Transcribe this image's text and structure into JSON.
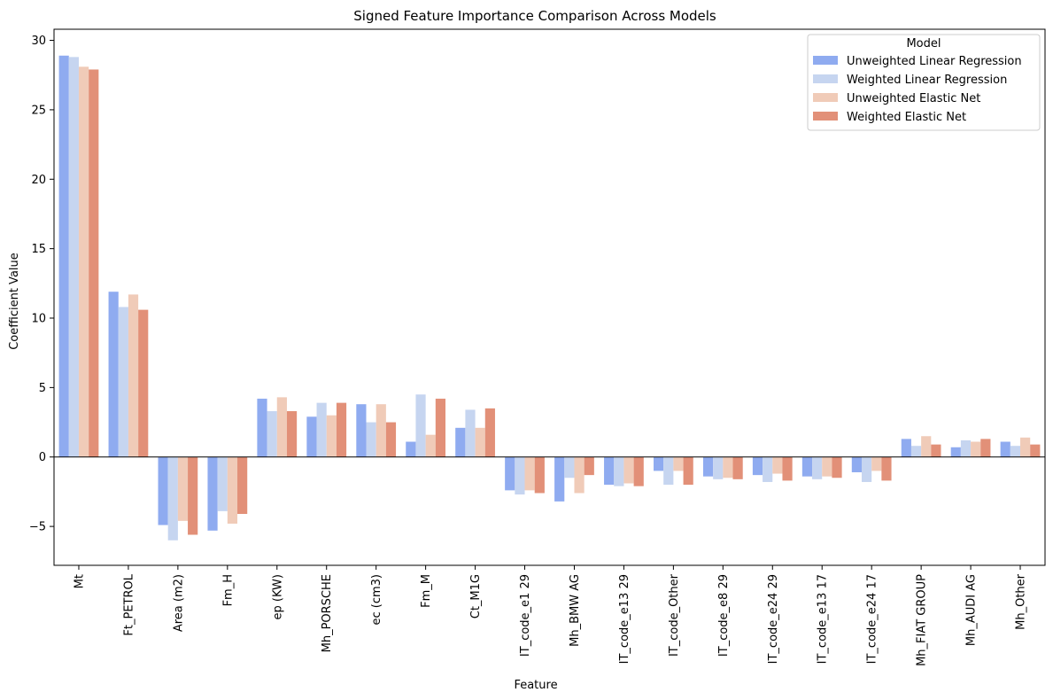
{
  "chart_data": {
    "type": "bar",
    "title": "Signed Feature Importance Comparison Across Models",
    "xlabel": "Feature",
    "ylabel": "Coefficient Value",
    "ylim": [
      -7.8,
      30.8
    ],
    "yticks": [
      -5,
      0,
      5,
      10,
      15,
      20,
      25,
      30
    ],
    "grid": false,
    "legend": {
      "title": "Model",
      "placement": "top-right"
    },
    "categories": [
      "Mt",
      "Ft_PETROL",
      "Area (m2)",
      "Fm_H",
      "ep (KW)",
      "Mh_PORSCHE",
      "ec (cm3)",
      "Fm_M",
      "Ct_M1G",
      "IT_code_e1 29",
      "Mh_BMW AG",
      "IT_code_e13 29",
      "IT_code_Other",
      "IT_code_e8 29",
      "IT_code_e24 29",
      "IT_code_e13 17",
      "IT_code_e24 17",
      "Mh_FIAT GROUP",
      "Mh_AUDI AG",
      "Mh_Other"
    ],
    "series": [
      {
        "name": "Unweighted Linear Regression",
        "color": "#8fabf0",
        "values": [
          28.9,
          11.9,
          -4.9,
          -5.3,
          4.2,
          2.9,
          3.8,
          1.1,
          2.1,
          -2.4,
          -3.2,
          -2.0,
          -1.0,
          -1.4,
          -1.3,
          -1.4,
          -1.1,
          1.3,
          0.7,
          1.1
        ]
      },
      {
        "name": "Weighted Linear Regression",
        "color": "#c6d5f0",
        "values": [
          28.8,
          10.8,
          -6.0,
          -3.9,
          3.3,
          3.9,
          2.5,
          4.5,
          3.4,
          -2.7,
          -1.5,
          -2.1,
          -2.0,
          -1.6,
          -1.8,
          -1.6,
          -1.8,
          0.8,
          1.2,
          0.8
        ]
      },
      {
        "name": "Unweighted Elastic Net",
        "color": "#f0cbb8",
        "values": [
          28.1,
          11.7,
          -4.6,
          -4.8,
          4.3,
          3.0,
          3.8,
          1.6,
          2.1,
          -2.4,
          -2.6,
          -1.9,
          -1.0,
          -1.5,
          -1.2,
          -1.4,
          -1.0,
          1.5,
          1.1,
          1.4
        ]
      },
      {
        "name": "Weighted Elastic Net",
        "color": "#e29078",
        "values": [
          27.9,
          10.6,
          -5.6,
          -4.1,
          3.3,
          3.9,
          2.5,
          4.2,
          3.5,
          -2.6,
          -1.3,
          -2.1,
          -2.0,
          -1.6,
          -1.7,
          -1.5,
          -1.7,
          0.9,
          1.3,
          0.9
        ]
      }
    ]
  }
}
